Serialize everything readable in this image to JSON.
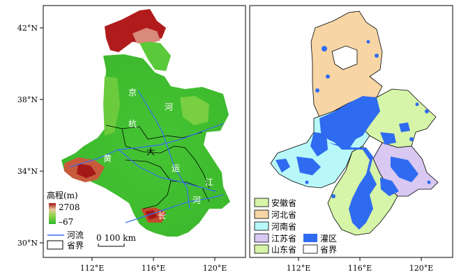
{
  "left_panel": {
    "lat_ticks": [
      "42°N",
      "38°N",
      "34°N",
      "30°N"
    ],
    "lon_ticks": [
      "112°E",
      "116°E",
      "120°E"
    ],
    "map_labels": {
      "jing": "京",
      "hang": "杭",
      "da": "大",
      "yun": "运",
      "he1": "河",
      "he2": "河",
      "huang": "黄",
      "chang": "长",
      "jiang": "江"
    },
    "legend": {
      "elevation_title": "高程(m)",
      "max": "2708",
      "min": "–67",
      "river": "河流",
      "border": "省界",
      "scale": "0  100 km"
    }
  },
  "right_panel": {
    "lon_ticks": [
      "112°E",
      "116°E",
      "120°E"
    ],
    "legend": {
      "anhui": "安徽省",
      "hebei": "河北省",
      "henan": "河南省",
      "jiangsu": "江苏省",
      "shandong": "山东省",
      "irrigation": "灌区",
      "border": "省界"
    },
    "colors": {
      "anhui": "#d6f5a8",
      "hebei": "#f7d5a5",
      "henan": "#b8f8f8",
      "jiangsu": "#d8c8f2",
      "shandong": "#d6f5a8",
      "irrigation": "#2f6bf0"
    }
  }
}
